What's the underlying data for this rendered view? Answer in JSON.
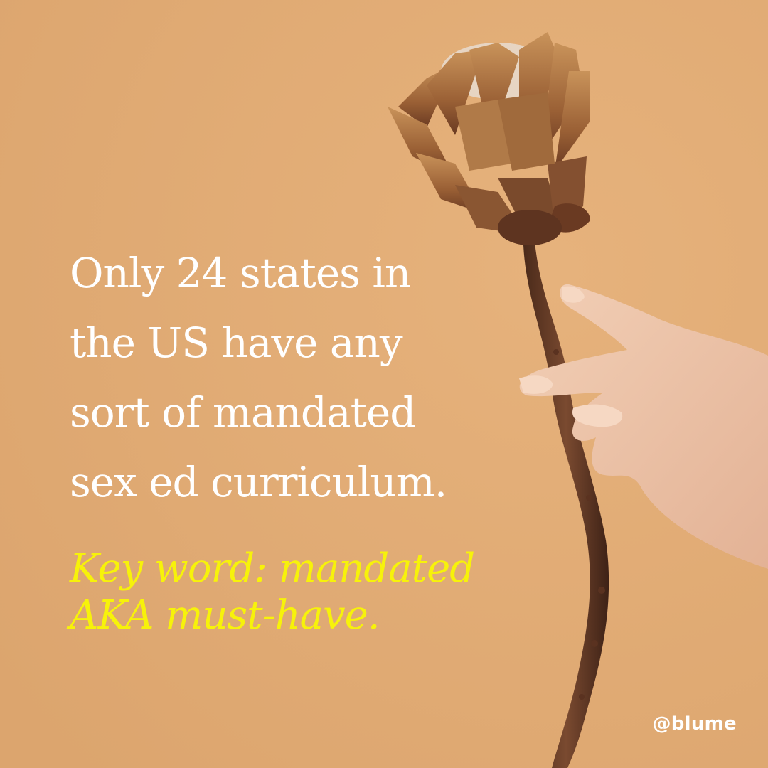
{
  "headline": {
    "lines": [
      "Only 24 states in",
      "the US have any",
      "sort of mandated",
      "sex ed curriculum."
    ]
  },
  "subline": {
    "lines": [
      "Key word: mandated",
      "AKA must-have."
    ]
  },
  "handle": "@blume",
  "colors": {
    "background": "#e1ad77",
    "headline": "#ffffff",
    "subline": "#f7f20a",
    "handle": "#ffffff"
  },
  "illustration": {
    "subject": "dried-protea-flower-held-by-hand-icon"
  }
}
